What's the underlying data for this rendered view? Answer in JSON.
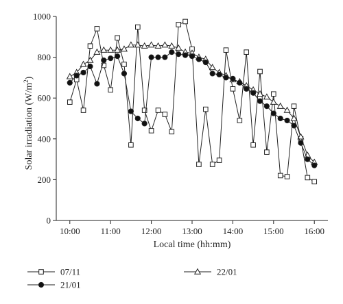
{
  "chart_data": {
    "type": "line",
    "xlabel": "Local time (hh:mm)",
    "ylabel": "Solar irradiation (W/m",
    "ylabel_unit_sup": "2",
    "ylabel_close": ")",
    "xlim": [
      9.667,
      16.333
    ],
    "ylim": [
      0,
      1000
    ],
    "x_ticks": [
      10,
      11,
      12,
      13,
      14,
      15,
      16
    ],
    "x_tick_labels": [
      "10:00",
      "11:00",
      "12:00",
      "13:00",
      "14:00",
      "15:00",
      "16:00"
    ],
    "y_ticks": [
      0,
      200,
      400,
      600,
      800,
      1000
    ],
    "y_tick_labels": [
      "0",
      "200",
      "400",
      "600",
      "800",
      "1000"
    ],
    "legend_position": "bottom",
    "series": [
      {
        "name": "07/11",
        "marker": "square-open",
        "x": [
          10.0,
          10.167,
          10.333,
          10.5,
          10.667,
          10.833,
          11.0,
          11.167,
          11.333,
          11.5,
          11.667,
          11.833,
          12.0,
          12.167,
          12.333,
          12.5,
          12.667,
          12.833,
          13.0,
          13.167,
          13.333,
          13.5,
          13.667,
          13.833,
          14.0,
          14.167,
          14.333,
          14.5,
          14.667,
          14.833,
          15.0,
          15.167,
          15.333,
          15.5,
          15.667,
          15.833,
          16.0
        ],
        "y": [
          580,
          690,
          540,
          855,
          940,
          760,
          640,
          895,
          765,
          370,
          948,
          540,
          440,
          540,
          520,
          435,
          960,
          975,
          840,
          275,
          545,
          275,
          295,
          835,
          645,
          490,
          825,
          370,
          730,
          335,
          620,
          220,
          215,
          560,
          400,
          210,
          190
        ]
      },
      {
        "name": "22/01",
        "marker": "triangle-open",
        "x": [
          10.0,
          10.167,
          10.333,
          10.5,
          10.667,
          10.833,
          11.0,
          11.167,
          11.333,
          11.5,
          11.667,
          11.833,
          12.0,
          12.167,
          12.333,
          12.5,
          12.667,
          12.833,
          13.0,
          13.167,
          13.333,
          13.5,
          13.667,
          13.833,
          14.0,
          14.167,
          14.333,
          14.5,
          14.667,
          14.833,
          15.0,
          15.167,
          15.333,
          15.5,
          15.667,
          15.833,
          16.0
        ],
        "y": [
          705,
          725,
          765,
          785,
          825,
          835,
          835,
          835,
          840,
          860,
          860,
          855,
          860,
          855,
          860,
          855,
          845,
          825,
          820,
          800,
          790,
          750,
          725,
          710,
          690,
          680,
          660,
          640,
          620,
          605,
          580,
          560,
          540,
          500,
          410,
          320,
          285
        ]
      },
      {
        "name": "21/01",
        "marker": "circle-filled",
        "x": [
          10.0,
          10.167,
          10.333,
          10.5,
          10.667,
          10.833,
          11.0,
          11.167,
          11.333,
          11.5,
          11.667,
          11.833,
          12.0,
          12.167,
          12.333,
          12.5,
          12.667,
          12.833,
          13.0,
          13.167,
          13.333,
          13.5,
          13.667,
          13.833,
          14.0,
          14.167,
          14.333,
          14.5,
          14.667,
          14.833,
          15.0,
          15.167,
          15.333,
          15.5,
          15.667,
          15.833,
          16.0
        ],
        "y": [
          675,
          710,
          725,
          755,
          670,
          785,
          795,
          805,
          720,
          535,
          500,
          475,
          800,
          800,
          800,
          825,
          815,
          810,
          805,
          790,
          775,
          720,
          715,
          700,
          695,
          675,
          645,
          625,
          585,
          560,
          525,
          500,
          490,
          465,
          380,
          300,
          270
        ]
      }
    ]
  }
}
